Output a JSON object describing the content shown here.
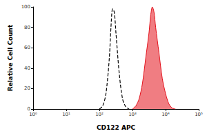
{
  "chart_data": {
    "type": "line",
    "x_label": "CD122 APC",
    "y_label": "Relative Cell Count",
    "log": "x",
    "xlim": [
      1,
      100000
    ],
    "xticks": [
      {
        "value": 1,
        "label": "10⁰"
      },
      {
        "value": 10,
        "label": "10¹"
      },
      {
        "value": 100,
        "label": "10²"
      },
      {
        "value": 1000,
        "label": "10³"
      },
      {
        "value": 10000,
        "label": "10⁴"
      },
      {
        "value": 100000,
        "label": "10⁵"
      }
    ],
    "ylim": [
      0,
      100
    ],
    "yticks": [
      0,
      20,
      40,
      60,
      80,
      100
    ],
    "grid": false,
    "series": [
      {
        "type": "line",
        "color": "#000000",
        "line_style": "dashed",
        "x": [
          100,
          126,
          158,
          200,
          224,
          251,
          282,
          316,
          398,
          501,
          631,
          794
        ],
        "values": [
          0,
          3,
          15,
          50,
          80,
          98,
          95,
          75,
          35,
          10,
          2,
          0
        ]
      },
      {
        "type": "area",
        "color": "#e3121c",
        "line_style": "solid",
        "x": [
          1000,
          1259,
          1585,
          1995,
          2512,
          3162,
          3548,
          3981,
          4467,
          5012,
          6310,
          7943,
          10000,
          12589,
          15849,
          19953
        ],
        "values": [
          0,
          3,
          10,
          25,
          50,
          75,
          92,
          100,
          95,
          80,
          55,
          30,
          15,
          5,
          1,
          0
        ]
      }
    ]
  }
}
